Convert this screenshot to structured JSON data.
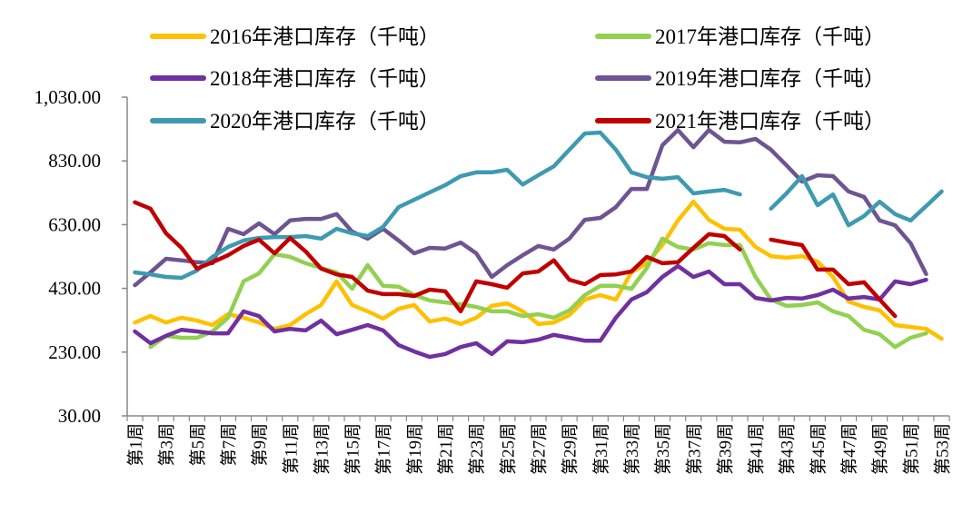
{
  "chart_data": {
    "type": "line",
    "title": "",
    "xlabel": "",
    "ylabel": "",
    "ylim": [
      30,
      1030
    ],
    "yticks": [
      "30.00",
      "230.00",
      "430.00",
      "630.00",
      "830.00",
      "1,030.00"
    ],
    "ytick_values": [
      30,
      230,
      430,
      630,
      830,
      1030
    ],
    "grid": false,
    "legend_position": "top",
    "categories": [
      "第1周",
      "第2周",
      "第3周",
      "第4周",
      "第5周",
      "第6周",
      "第7周",
      "第8周",
      "第9周",
      "第10周",
      "第11周",
      "第12周",
      "第13周",
      "第14周",
      "第15周",
      "第16周",
      "第17周",
      "第18周",
      "第19周",
      "第20周",
      "第21周",
      "第22周",
      "第23周",
      "第24周",
      "第25周",
      "第26周",
      "第27周",
      "第28周",
      "第29周",
      "第30周",
      "第31周",
      "第32周",
      "第33周",
      "第34周",
      "第35周",
      "第36周",
      "第37周",
      "第38周",
      "第39周",
      "第40周",
      "第41周",
      "第42周",
      "第43周",
      "第44周",
      "第45周",
      "第46周",
      "第47周",
      "第48周",
      "第49周",
      "第50周",
      "第51周",
      "第52周",
      "第53周"
    ],
    "series": [
      {
        "name": "2016年港口库存（千吨）",
        "color": "#FFC000",
        "values": [
          323,
          343,
          323,
          338,
          329,
          315,
          349,
          338,
          323,
          303,
          315,
          349,
          378,
          452,
          378,
          358,
          335,
          366,
          378,
          326,
          335,
          318,
          338,
          375,
          383,
          358,
          318,
          323,
          346,
          395,
          409,
          395,
          480,
          509,
          566,
          643,
          702,
          645,
          617,
          614,
          560,
          531,
          526,
          531,
          514,
          466,
          389,
          372,
          361,
          315,
          309,
          303,
          272
        ]
      },
      {
        "name": "2017年港口库存（千吨）",
        "color": "#92D050",
        "values": [
          null,
          246,
          281,
          275,
          275,
          295,
          338,
          452,
          477,
          537,
          529,
          509,
          494,
          480,
          429,
          503,
          438,
          435,
          409,
          392,
          386,
          380,
          372,
          358,
          358,
          343,
          349,
          338,
          361,
          409,
          438,
          438,
          429,
          494,
          586,
          560,
          552,
          572,
          566,
          566,
          466,
          395,
          375,
          378,
          386,
          358,
          343,
          300,
          286,
          246,
          275,
          289,
          null
        ]
      },
      {
        "name": "2018年港口库存（千吨）",
        "color": "#7030A0",
        "values": [
          295,
          258,
          281,
          300,
          295,
          289,
          289,
          358,
          343,
          295,
          303,
          298,
          329,
          286,
          300,
          315,
          298,
          252,
          232,
          215,
          224,
          246,
          258,
          224,
          264,
          261,
          269,
          284,
          275,
          266,
          266,
          338,
          395,
          418,
          466,
          500,
          466,
          483,
          443,
          443,
          400,
          392,
          400,
          398,
          409,
          426,
          398,
          403,
          395,
          452,
          443,
          457,
          null
        ]
      },
      {
        "name": "2019年港口库存（千吨）",
        "color": "#6E5492",
        "values": [
          440,
          480,
          523,
          518,
          512,
          509,
          617,
          600,
          634,
          600,
          643,
          648,
          648,
          663,
          608,
          586,
          617,
          580,
          540,
          557,
          555,
          574,
          540,
          466,
          503,
          534,
          563,
          552,
          586,
          645,
          651,
          685,
          742,
          742,
          879,
          927,
          873,
          927,
          890,
          888,
          899,
          865,
          816,
          765,
          785,
          782,
          734,
          717,
          643,
          628,
          572,
          475,
          null
        ]
      },
      {
        "name": "2020年港口库存（千吨）",
        "color": "#3E9AB0",
        "values": [
          480,
          474,
          466,
          463,
          486,
          529,
          560,
          580,
          588,
          591,
          591,
          594,
          586,
          617,
          603,
          594,
          623,
          685,
          708,
          731,
          754,
          782,
          794,
          794,
          802,
          756,
          785,
          813,
          865,
          916,
          919,
          865,
          794,
          779,
          774,
          779,
          728,
          734,
          739,
          725,
          null,
          680,
          728,
          782,
          691,
          725,
          628,
          657,
          702,
          663,
          643,
          688,
          734
        ]
      },
      {
        "name": "2021年港口库存（千吨）",
        "color": "#C00000",
        "values": [
          700,
          680,
          603,
          557,
          492,
          512,
          534,
          563,
          583,
          540,
          588,
          546,
          492,
          474,
          466,
          423,
          412,
          412,
          406,
          426,
          421,
          358,
          452,
          443,
          432,
          477,
          483,
          518,
          457,
          443,
          472,
          474,
          483,
          529,
          509,
          512,
          557,
          600,
          594,
          552,
          null,
          583,
          574,
          566,
          489,
          489,
          443,
          449,
          395,
          343,
          null,
          null,
          null
        ]
      }
    ]
  }
}
